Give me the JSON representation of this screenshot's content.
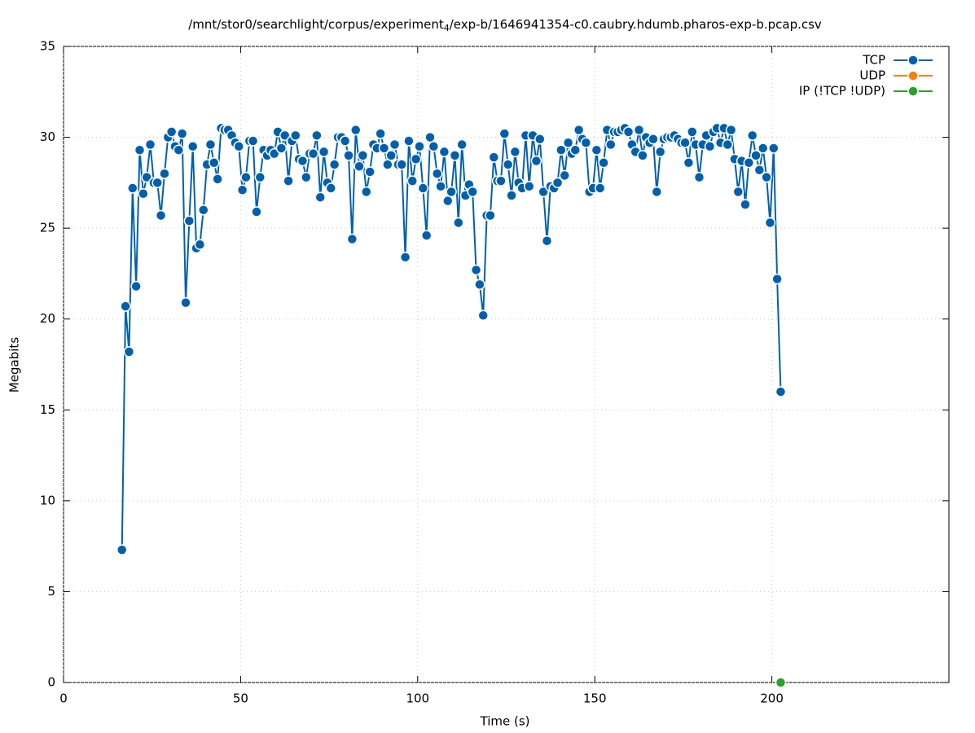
{
  "chart_data": {
    "type": "line",
    "title": [
      "/mnt/stor0/searchlight/corpus/experiment",
      "4",
      "/exp-b/1646941354-c0.caubry.hdumb.pharos-exp-b.pcap.csv"
    ],
    "xlabel": "Time (s)",
    "ylabel": "Megabits",
    "xlim": [
      0,
      250
    ],
    "xticks": [
      0,
      50,
      100,
      150,
      200
    ],
    "ylim": [
      0,
      35
    ],
    "yticks": [
      0,
      5,
      10,
      15,
      20,
      25,
      30,
      35
    ],
    "grid": true,
    "legend": "top-right",
    "series": [
      {
        "name": "TCP",
        "color": "#0060ad",
        "x": [
          16.5,
          17.5,
          18.5,
          19.5,
          20.5,
          21.5,
          22.5,
          23.5,
          24.5,
          25.5,
          26.5,
          27.5,
          28.5,
          29.5,
          30.5,
          31.5,
          32.5,
          33.5,
          34.5,
          35.5,
          36.5,
          37.5,
          38.5,
          39.5,
          40.5,
          41.5,
          42.5,
          43.5,
          44.5,
          45.5,
          46.5,
          47.5,
          48.5,
          49.5,
          50.5,
          51.5,
          52.5,
          53.5,
          54.5,
          55.5,
          56.5,
          57.5,
          58.5,
          59.5,
          60.5,
          61.5,
          62.5,
          63.5,
          64.5,
          65.5,
          66.5,
          67.5,
          68.5,
          69.5,
          70.5,
          71.5,
          72.5,
          73.5,
          74.5,
          75.5,
          76.5,
          77.5,
          78.5,
          79.5,
          80.5,
          81.5,
          82.5,
          83.5,
          84.5,
          85.5,
          86.5,
          87.5,
          88.5,
          89.5,
          90.5,
          91.5,
          92.5,
          93.5,
          94.5,
          95.5,
          96.5,
          97.5,
          98.5,
          99.5,
          100.5,
          101.5,
          102.5,
          103.5,
          104.5,
          105.5,
          106.5,
          107.5,
          108.5,
          109.5,
          110.5,
          111.5,
          112.5,
          113.5,
          114.5,
          115.5,
          116.5,
          117.5,
          118.5,
          119.5,
          120.5,
          121.5,
          122.5,
          123.5,
          124.5,
          125.5,
          126.5,
          127.5,
          128.5,
          129.5,
          130.5,
          131.5,
          132.5,
          133.5,
          134.5,
          135.5,
          136.5,
          137.5,
          138.5,
          139.5,
          140.5,
          141.5,
          142.5,
          143.5,
          144.5,
          145.5,
          146.5,
          147.5,
          148.5,
          149.5,
          150.5,
          151.5,
          152.5,
          153.5,
          154.5,
          155.5,
          156.5,
          157.5,
          158.5,
          159.5,
          160.5,
          161.5,
          162.5,
          163.5,
          164.5,
          165.5,
          166.5,
          167.5,
          168.5,
          169.5,
          170.5,
          171.5,
          172.5,
          173.5,
          174.5,
          175.5,
          176.5,
          177.5,
          178.5,
          179.5,
          180.5,
          181.5,
          182.5,
          183.5,
          184.5,
          185.5,
          186.5,
          187.5,
          188.5,
          189.5,
          190.5,
          191.5,
          192.5,
          193.5,
          194.5,
          195.5,
          196.5,
          197.5,
          198.5,
          199.5,
          200.5,
          201.5,
          202.5
        ],
        "values": [
          7.3,
          20.7,
          18.2,
          27.2,
          21.8,
          29.3,
          26.9,
          27.8,
          29.6,
          27.5,
          27.5,
          25.7,
          28.0,
          30.0,
          30.3,
          29.5,
          29.3,
          30.2,
          20.9,
          25.4,
          29.5,
          23.9,
          24.1,
          26.0,
          28.5,
          29.6,
          28.6,
          27.7,
          30.5,
          30.4,
          30.4,
          30.1,
          29.7,
          29.5,
          27.1,
          27.8,
          29.8,
          29.8,
          25.9,
          27.8,
          29.3,
          29.0,
          29.3,
          29.1,
          30.3,
          29.4,
          30.1,
          27.6,
          29.8,
          30.1,
          28.8,
          28.7,
          27.8,
          29.1,
          29.1,
          30.1,
          26.7,
          29.2,
          27.5,
          27.2,
          28.5,
          30.0,
          30.0,
          29.8,
          29.0,
          24.4,
          30.4,
          28.4,
          29.0,
          27.0,
          28.1,
          29.6,
          29.4,
          30.2,
          29.4,
          28.5,
          29.0,
          29.6,
          28.5,
          28.5,
          23.4,
          29.8,
          27.6,
          28.8,
          29.5,
          27.2,
          24.6,
          30.0,
          29.5,
          28.0,
          27.3,
          29.2,
          26.5,
          27.0,
          29.0,
          25.3,
          29.6,
          26.8,
          27.4,
          27.0,
          22.7,
          21.9,
          20.2,
          25.7,
          25.7,
          28.9,
          27.6,
          27.6,
          30.2,
          28.5,
          26.8,
          29.2,
          27.5,
          27.2,
          30.1,
          27.3,
          30.1,
          28.7,
          29.9,
          27.0,
          24.3,
          27.3,
          27.2,
          27.5,
          29.3,
          27.9,
          29.7,
          29.1,
          29.3,
          30.4,
          29.9,
          29.7,
          27.0,
          27.2,
          29.3,
          27.2,
          28.6,
          30.4,
          29.6,
          30.3,
          30.3,
          30.4,
          30.5,
          30.3,
          29.6,
          29.2,
          30.4,
          29.0,
          30.0,
          29.7,
          29.9,
          27.0,
          29.2,
          29.9,
          30.0,
          30.0,
          30.1,
          29.9,
          29.7,
          29.7,
          28.6,
          30.3,
          29.6,
          27.8,
          29.6,
          30.1,
          29.5,
          30.3,
          30.5,
          29.7,
          30.5,
          29.6,
          30.4,
          28.8,
          27.0,
          28.7,
          26.3,
          28.6,
          30.1,
          29.0,
          28.2,
          29.4,
          27.8,
          25.3,
          29.4,
          22.2,
          16.0
        ]
      },
      {
        "name": "UDP",
        "color": "#ff7f0e",
        "x": [],
        "values": []
      },
      {
        "name": "IP (!TCP  !UDP)",
        "color": "#2ca02c",
        "x": [
          202.5
        ],
        "values": [
          0
        ]
      }
    ]
  }
}
